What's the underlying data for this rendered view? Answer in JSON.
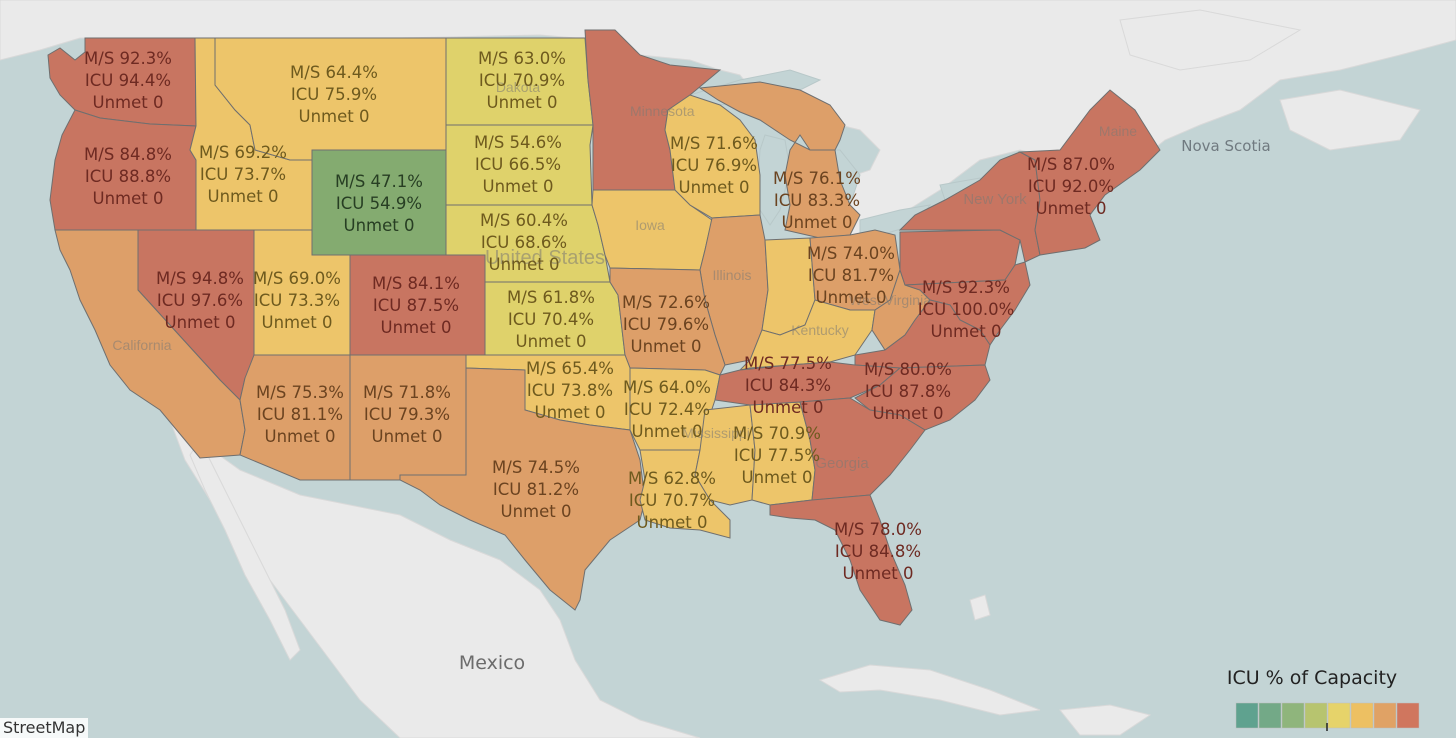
{
  "legend": {
    "title": "ICU % of Capacity",
    "swatches": [
      "#5fa28f",
      "#73a987",
      "#8fb57c",
      "#b7c46f",
      "#e6d36a",
      "#edc062",
      "#e0a265",
      "#d0765e"
    ]
  },
  "geo_labels": {
    "country_mexico": "Mexico",
    "province_nova_scotia": "Nova Scotia",
    "attribution": "StreetMap",
    "basemap": [
      "Minnesota",
      "Iowa",
      "Illinois",
      "Kentucky",
      "West Virginia",
      "New York",
      "Maine",
      "Georgia",
      "California",
      "Mississippi",
      "Dakota",
      "United States"
    ]
  },
  "colors": {
    "red": "#c87561",
    "orange": "#dd9f69",
    "yellow": "#edc56a",
    "lime": "#dfd26b",
    "green": "#84ab70",
    "land": "#eaeaea",
    "water": "#c3d4d5"
  },
  "states": {
    "wa": {
      "ms": "M/S 92.3%",
      "icu": "ICU 94.4%",
      "unmet": "Unmet 0"
    },
    "or": {
      "ms": "M/S 84.8%",
      "icu": "ICU 88.8%",
      "unmet": "Unmet 0"
    },
    "id": {
      "ms": "M/S 69.2%",
      "icu": "ICU 73.7%",
      "unmet": "Unmet 0"
    },
    "mt": {
      "ms": "M/S 64.4%",
      "icu": "ICU 75.9%",
      "unmet": "Unmet 0"
    },
    "wy": {
      "ms": "M/S 47.1%",
      "icu": "ICU 54.9%",
      "unmet": "Unmet 0"
    },
    "nd": {
      "ms": "M/S 63.0%",
      "icu": "ICU 70.9%",
      "unmet": "Unmet 0"
    },
    "sd": {
      "ms": "M/S 54.6%",
      "icu": "ICU 66.5%",
      "unmet": "Unmet 0"
    },
    "ne": {
      "ms": "M/S 60.4%",
      "icu": "ICU 68.6%",
      "unmet": "Unmet 0"
    },
    "nv": {
      "ms": "M/S 94.8%",
      "icu": "ICU 97.6%",
      "unmet": "Unmet 0"
    },
    "ut": {
      "ms": "M/S 69.0%",
      "icu": "ICU 73.3%",
      "unmet": "Unmet 0"
    },
    "co": {
      "ms": "M/S 84.1%",
      "icu": "ICU 87.5%",
      "unmet": "Unmet 0"
    },
    "ks": {
      "ms": "M/S 61.8%",
      "icu": "ICU 70.4%",
      "unmet": "Unmet 0"
    },
    "mo": {
      "ms": "M/S 72.6%",
      "icu": "ICU 79.6%",
      "unmet": "Unmet 0"
    },
    "wi": {
      "ms": "M/S 71.6%",
      "icu": "ICU 76.9%",
      "unmet": "Unmet 0"
    },
    "mi": {
      "ms": "M/S 76.1%",
      "icu": "ICU 83.3%",
      "unmet": "Unmet 0"
    },
    "oh": {
      "ms": "M/S 74.0%",
      "icu": "ICU 81.7%",
      "unmet": "Unmet 0"
    },
    "ny": {
      "ms": "M/S 87.0%",
      "icu": "ICU 92.0%",
      "unmet": "Unmet 0"
    },
    "pa": {
      "ms": "M/S 92.3%",
      "icu": "ICU 100.0%",
      "unmet": "Unmet 0"
    },
    "az": {
      "ms": "M/S 75.3%",
      "icu": "ICU 81.1%",
      "unmet": "Unmet 0"
    },
    "nm": {
      "ms": "M/S 71.8%",
      "icu": "ICU 79.3%",
      "unmet": "Unmet 0"
    },
    "ok": {
      "ms": "M/S 65.4%",
      "icu": "ICU 73.8%",
      "unmet": "Unmet 0"
    },
    "ar": {
      "ms": "M/S 64.0%",
      "icu": "ICU 72.4%",
      "unmet": "Unmet 0"
    },
    "tn": {
      "ms": "M/S 77.5%",
      "icu": "ICU 84.3%",
      "unmet": "Unmet 0"
    },
    "nc": {
      "ms": "M/S 80.0%",
      "icu": "ICU 87.8%",
      "unmet": "Unmet 0"
    },
    "tx": {
      "ms": "M/S 74.5%",
      "icu": "ICU 81.2%",
      "unmet": "Unmet 0"
    },
    "ms": {
      "ms": "M/S 70.9%",
      "icu": "ICU 77.5%",
      "unmet": "Unmet 0"
    },
    "la": {
      "ms": "M/S 62.8%",
      "icu": "ICU 70.7%",
      "unmet": "Unmet 0"
    },
    "fl": {
      "ms": "M/S 78.0%",
      "icu": "ICU 84.8%",
      "unmet": "Unmet 0"
    }
  }
}
